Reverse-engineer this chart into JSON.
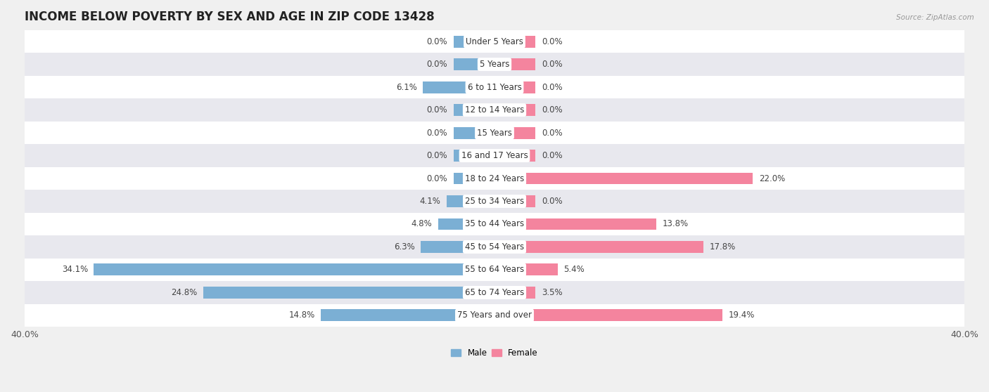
{
  "title": "INCOME BELOW POVERTY BY SEX AND AGE IN ZIP CODE 13428",
  "source": "Source: ZipAtlas.com",
  "categories": [
    "Under 5 Years",
    "5 Years",
    "6 to 11 Years",
    "12 to 14 Years",
    "15 Years",
    "16 and 17 Years",
    "18 to 24 Years",
    "25 to 34 Years",
    "35 to 44 Years",
    "45 to 54 Years",
    "55 to 64 Years",
    "65 to 74 Years",
    "75 Years and over"
  ],
  "male_values": [
    0.0,
    0.0,
    6.1,
    0.0,
    0.0,
    0.0,
    0.0,
    4.1,
    4.8,
    6.3,
    34.1,
    24.8,
    14.8
  ],
  "female_values": [
    0.0,
    0.0,
    0.0,
    0.0,
    0.0,
    0.0,
    22.0,
    0.0,
    13.8,
    17.8,
    5.4,
    3.5,
    19.4
  ],
  "male_color": "#7bafd4",
  "female_color": "#f4849e",
  "axis_limit": 40.0,
  "min_bar_val": 3.5,
  "background_color": "#f0f0f0",
  "row_colors": [
    "#ffffff",
    "#e8e8ee"
  ],
  "title_fontsize": 12,
  "label_fontsize": 8.5,
  "value_fontsize": 8.5,
  "tick_fontsize": 9,
  "bar_height": 0.52
}
